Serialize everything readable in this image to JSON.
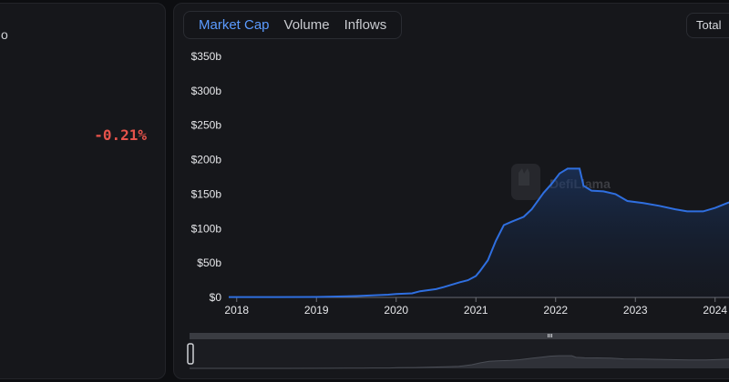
{
  "left_panel": {
    "stub_text": "o",
    "change": "-0.21%"
  },
  "chart_panel": {
    "tabs": [
      {
        "label": "Market Cap",
        "active": true
      },
      {
        "label": "Volume",
        "active": false
      },
      {
        "label": "Inflows",
        "active": false
      }
    ],
    "total_label": "Total",
    "watermark": "DefiLlama"
  },
  "colors": {
    "accent": "#5b9bff",
    "line": "#2f6fe0",
    "negative": "#e5534b"
  },
  "chart_data": {
    "type": "area",
    "title": "",
    "xlabel": "",
    "ylabel": "",
    "y_ticks": [
      "$0",
      "$50b",
      "$100b",
      "$150b",
      "$200b",
      "$250b",
      "$300b",
      "$350b"
    ],
    "x_ticks": [
      "2018",
      "2019",
      "2020",
      "2021",
      "2022",
      "2023",
      "2024"
    ],
    "ylim": [
      0,
      350
    ],
    "xlim": [
      2017.9,
      2024.3
    ],
    "grid": false,
    "series": [
      {
        "name": "",
        "points": [
          [
            2017.9,
            0.5
          ],
          [
            2018.5,
            0.5
          ],
          [
            2019.0,
            0.6
          ],
          [
            2019.5,
            2
          ],
          [
            2019.9,
            4
          ],
          [
            2020.0,
            5
          ],
          [
            2020.2,
            6
          ],
          [
            2020.3,
            9
          ],
          [
            2020.5,
            12
          ],
          [
            2020.6,
            15
          ],
          [
            2020.8,
            22
          ],
          [
            2020.9,
            25
          ],
          [
            2021.0,
            31
          ],
          [
            2021.05,
            38
          ],
          [
            2021.15,
            54
          ],
          [
            2021.25,
            82
          ],
          [
            2021.35,
            105
          ],
          [
            2021.45,
            110
          ],
          [
            2021.6,
            117
          ],
          [
            2021.7,
            128
          ],
          [
            2021.85,
            152
          ],
          [
            2021.95,
            165
          ],
          [
            2022.05,
            180
          ],
          [
            2022.15,
            187
          ],
          [
            2022.3,
            187
          ],
          [
            2022.35,
            162
          ],
          [
            2022.45,
            155
          ],
          [
            2022.6,
            154
          ],
          [
            2022.75,
            150
          ],
          [
            2022.9,
            140
          ],
          [
            2023.1,
            137
          ],
          [
            2023.3,
            133
          ],
          [
            2023.5,
            128
          ],
          [
            2023.65,
            125
          ],
          [
            2023.85,
            125
          ],
          [
            2024.0,
            130
          ],
          [
            2024.15,
            137
          ],
          [
            2024.3,
            143
          ]
        ]
      }
    ]
  }
}
